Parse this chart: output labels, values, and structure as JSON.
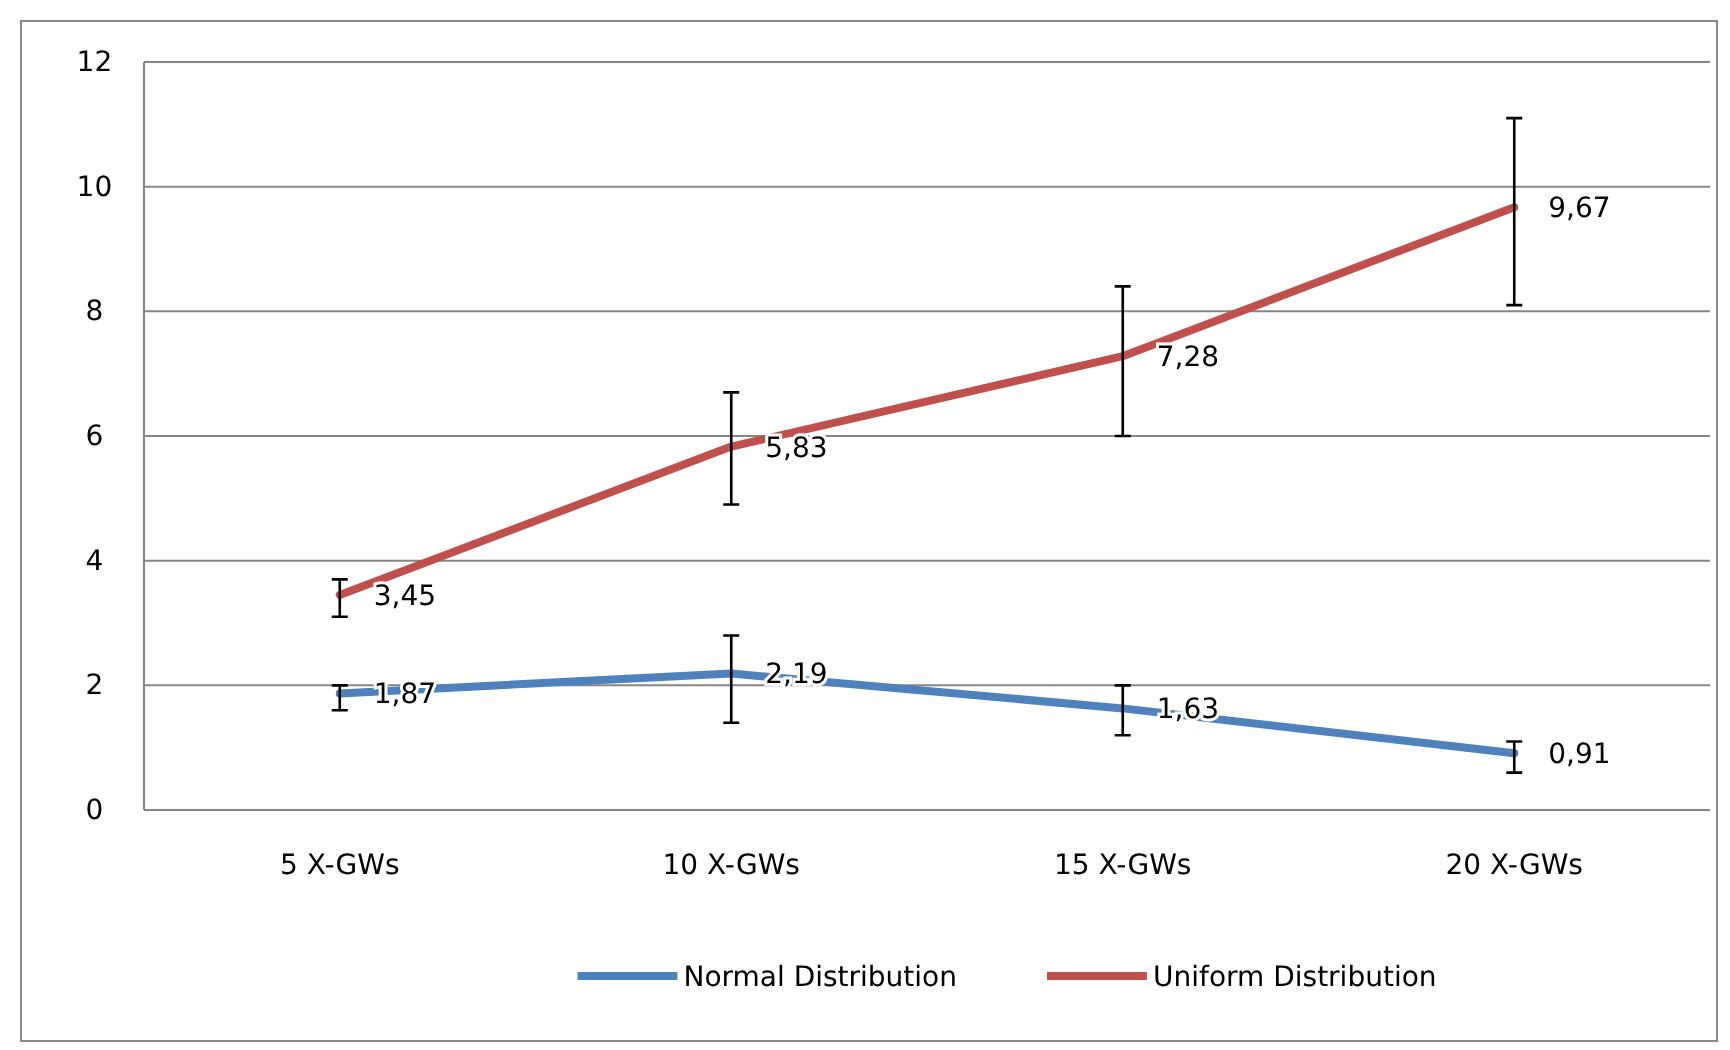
{
  "chart_data": {
    "type": "line",
    "categories": [
      "5 X-GWs",
      "10 X-GWs",
      "15 X-GWs",
      "20 X-GWs"
    ],
    "series": [
      {
        "name": "Normal Distribution",
        "color": "#4f81bd",
        "values": [
          1.87,
          2.19,
          1.63,
          0.91
        ],
        "value_labels": [
          "1,87",
          "2,19",
          "1,63",
          "0,91"
        ],
        "errors": [
          [
            1.6,
            2.0
          ],
          [
            1.4,
            2.8
          ],
          [
            1.2,
            2.0
          ],
          [
            0.6,
            1.1
          ]
        ]
      },
      {
        "name": "Uniform Distribution",
        "color": "#c0504d",
        "values": [
          3.45,
          5.83,
          7.28,
          9.67
        ],
        "value_labels": [
          "3,45",
          "5,83",
          "7,28",
          "9,67"
        ],
        "errors": [
          [
            3.1,
            3.7
          ],
          [
            4.9,
            6.7
          ],
          [
            6.0,
            8.4
          ],
          [
            8.1,
            11.1
          ]
        ]
      }
    ],
    "ylim": [
      0,
      12
    ],
    "yticks": [
      0,
      2,
      4,
      6,
      8,
      10,
      12
    ],
    "grid": "y",
    "legend": "bottom",
    "marker": "none",
    "line_style": "solid"
  }
}
